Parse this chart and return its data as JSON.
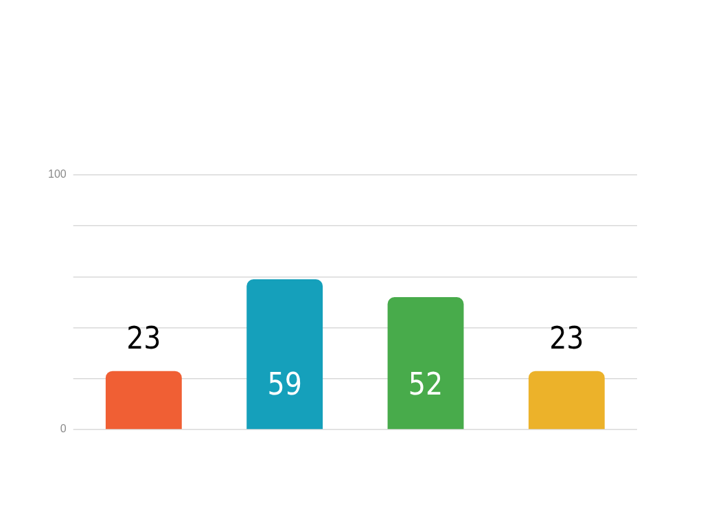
{
  "chart_data": {
    "type": "bar",
    "categories": [
      null,
      null,
      null,
      null
    ],
    "values": [
      23,
      59,
      52,
      23
    ],
    "colors": [
      "#f05f34",
      "#15a0bb",
      "#48ab4b",
      "#ecb22a"
    ],
    "ylim": [
      0,
      100
    ],
    "yticks": [
      0,
      {
        "value": 20,
        "label": null
      },
      {
        "value": 40,
        "label": null
      },
      {
        "value": 60,
        "label": null
      },
      {
        "value": 80,
        "label": null
      },
      100
    ],
    "grid": "y",
    "data_labels": true,
    "legend": false
  }
}
